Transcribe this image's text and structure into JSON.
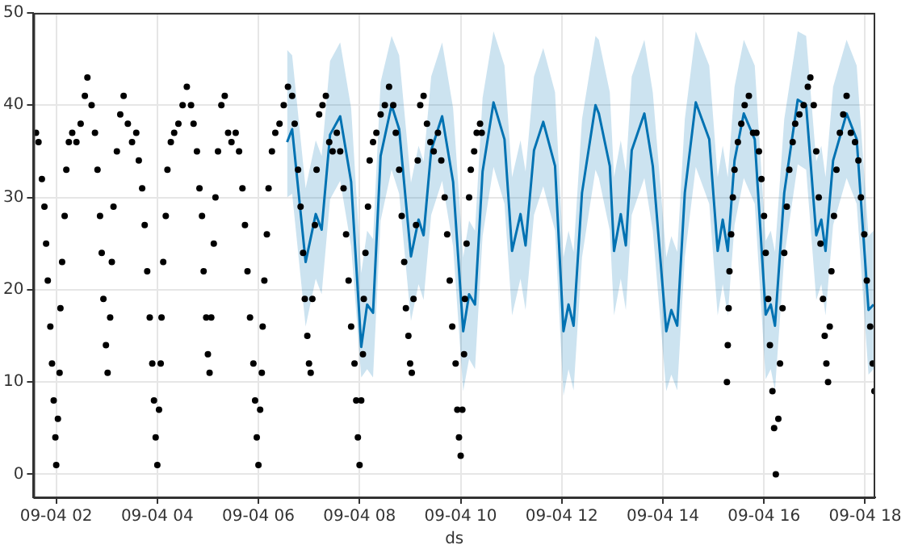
{
  "chart_data": {
    "type": "scatter",
    "xlabel": "ds",
    "grid": true,
    "legend": false,
    "xlim": [
      "--09-04T01:33",
      "--09-04T18:12"
    ],
    "xticks": [
      {
        "value": "--09-04T02:00",
        "label": "09-04 02"
      },
      {
        "value": "--09-04T04:00",
        "label": "09-04 04"
      },
      {
        "value": "--09-04T06:00",
        "label": "09-04 06"
      },
      {
        "value": "--09-04T08:00",
        "label": "09-04 08"
      },
      {
        "value": "--09-04T10:00",
        "label": "09-04 10"
      },
      {
        "value": "--09-04T12:00",
        "label": "09-04 12"
      },
      {
        "value": "--09-04T14:00",
        "label": "09-04 14"
      },
      {
        "value": "--09-04T16:00",
        "label": "09-04 16"
      },
      {
        "value": "--09-04T18:00",
        "label": "09-04 18"
      }
    ],
    "ylim": [
      -2.5,
      50
    ],
    "yticks": [
      0,
      10,
      20,
      30,
      40,
      50
    ],
    "series": [
      {
        "type": "line",
        "color": "#0072b2",
        "marker": "none",
        "line_style": "solid",
        "x": [
          "--09-04T06:34",
          "--09-04T06:40",
          "--09-04T06:56",
          "--09-04T07:08",
          "--09-04T07:15",
          "--09-04T07:25",
          "--09-04T07:37",
          "--09-04T07:50",
          "--09-04T08:02",
          "--09-04T08:09",
          "--09-04T08:16",
          "--09-04T08:25",
          "--09-04T08:38",
          "--09-04T08:47",
          "--09-04T09:01",
          "--09-04T09:10",
          "--09-04T09:16",
          "--09-04T09:25",
          "--09-04T09:38",
          "--09-04T09:51",
          "--09-04T10:03",
          "--09-04T10:10",
          "--09-04T10:17",
          "--09-04T10:26",
          "--09-04T10:39",
          "--09-04T10:52",
          "--09-04T11:01",
          "--09-04T11:11",
          "--09-04T11:17",
          "--09-04T11:27",
          "--09-04T11:38",
          "--09-04T11:52",
          "--09-04T12:02",
          "--09-04T12:08",
          "--09-04T12:14",
          "--09-04T12:24",
          "--09-04T12:40",
          "--09-04T12:44",
          "--09-04T12:57",
          "--09-04T13:02",
          "--09-04T13:10",
          "--09-04T13:16",
          "--09-04T13:23",
          "--09-04T13:38",
          "--09-04T13:48",
          "--09-04T14:04",
          "--09-04T14:10",
          "--09-04T14:17",
          "--09-04T14:26",
          "--09-04T14:39",
          "--09-04T14:55",
          "--09-04T15:05",
          "--09-04T15:11",
          "--09-04T15:17",
          "--09-04T15:25",
          "--09-04T15:36",
          "--09-04T15:49",
          "--09-04T16:02",
          "--09-04T16:08",
          "--09-04T16:13",
          "--09-04T16:24",
          "--09-04T16:40",
          "--09-04T16:50",
          "--09-04T17:02",
          "--09-04T17:08",
          "--09-04T17:13",
          "--09-04T17:22",
          "--09-04T17:38",
          "--09-04T17:50",
          "--09-04T18:04",
          "--09-04T18:10"
        ],
        "values": [
          36,
          37.4,
          23,
          28.2,
          26.5,
          36.8,
          38.8,
          31.7,
          13.8,
          18.4,
          17.5,
          34.5,
          40,
          37.4,
          23.6,
          27.6,
          25.9,
          35.1,
          38.8,
          31.7,
          15.5,
          19.5,
          18.4,
          32.8,
          40.3,
          36.3,
          24.2,
          28.2,
          24.8,
          35.1,
          38.2,
          33.4,
          15.5,
          18.4,
          16.1,
          30.5,
          40,
          39.1,
          33.4,
          24.2,
          28.2,
          24.8,
          35.1,
          39.1,
          33.4,
          15.5,
          17.8,
          16.1,
          30.5,
          40.3,
          36.3,
          24.2,
          27.6,
          24.2,
          34,
          39.1,
          36.3,
          17.3,
          18.4,
          16.1,
          30.5,
          40.6,
          40,
          25.9,
          27.6,
          24.2,
          34,
          39.1,
          36.3,
          17.8,
          18.4
        ],
        "lower": [
          30,
          30.4,
          16,
          21.2,
          19.5,
          29.8,
          31.8,
          24.7,
          10.5,
          11.4,
          10.5,
          27.5,
          33,
          30.4,
          16.6,
          20.6,
          18.9,
          28.1,
          31.8,
          24.7,
          9,
          12.5,
          11.4,
          25.8,
          33.3,
          29.3,
          17.2,
          21.2,
          17.8,
          28.1,
          31.2,
          26.4,
          8.5,
          11.4,
          9.1,
          23.5,
          33,
          32.1,
          26.4,
          17.2,
          21.2,
          17.8,
          28.1,
          32.1,
          26.4,
          9,
          10.8,
          9.1,
          23.5,
          33.3,
          29.3,
          17.2,
          20.6,
          17.2,
          27,
          32.1,
          29.3,
          10.3,
          11.4,
          9.1,
          23.5,
          33.6,
          33,
          18.9,
          20.6,
          17.2,
          27,
          32.1,
          29.3,
          10.8,
          11.4
        ],
        "upper": [
          46,
          45.4,
          31,
          36.2,
          34.5,
          44.8,
          46.8,
          39.7,
          21.8,
          26.4,
          25.5,
          42.5,
          47.5,
          45.4,
          31.6,
          35.6,
          33.9,
          43.1,
          46.8,
          39.7,
          23.5,
          27.5,
          26.4,
          40.8,
          48,
          44.3,
          32.2,
          36.2,
          32.8,
          43.1,
          46.2,
          41.4,
          23.5,
          26.4,
          24.1,
          38.5,
          47.5,
          47.1,
          41.4,
          32.2,
          36.2,
          32.8,
          43.1,
          47.1,
          41.4,
          23.5,
          25.8,
          24.1,
          38.5,
          48,
          44.3,
          32.2,
          35.6,
          32.2,
          42,
          47.1,
          44.3,
          25.3,
          26.4,
          24.1,
          38.5,
          48,
          47.5,
          33.9,
          35.6,
          32.2,
          42,
          47.1,
          44.3,
          25.8,
          26.4
        ]
      },
      {
        "color": "#000000",
        "marker": "circle",
        "x": [
          "--09-04T01:36",
          "--09-04T01:39",
          "--09-04T01:43",
          "--09-04T01:46",
          "--09-04T01:48",
          "--09-04T01:50",
          "--09-04T01:53",
          "--09-04T01:55",
          "--09-04T01:57",
          "--09-04T01:59",
          "--09-04T02:00",
          "--09-04T02:02",
          "--09-04T02:04",
          "--09-04T02:05",
          "--09-04T02:07",
          "--09-04T02:10",
          "--09-04T02:12",
          "--09-04T02:15",
          "--09-04T02:19",
          "--09-04T02:24",
          "--09-04T02:29",
          "--09-04T02:34",
          "--09-04T02:37",
          "--09-04T02:42",
          "--09-04T02:46",
          "--09-04T02:49",
          "--09-04T02:52",
          "--09-04T02:54",
          "--09-04T02:56",
          "--09-04T02:59",
          "--09-04T03:01",
          "--09-04T03:04",
          "--09-04T03:06",
          "--09-04T03:08",
          "--09-04T03:12",
          "--09-04T03:16",
          "--09-04T03:20",
          "--09-04T03:25",
          "--09-04T03:30",
          "--09-04T03:35",
          "--09-04T03:38",
          "--09-04T03:42",
          "--09-04T03:45",
          "--09-04T03:48",
          "--09-04T03:51",
          "--09-04T03:54",
          "--09-04T03:56",
          "--09-04T03:58",
          "--09-04T04:00",
          "--09-04T04:02",
          "--09-04T04:04",
          "--09-04T04:05",
          "--09-04T04:07",
          "--09-04T04:10",
          "--09-04T04:12",
          "--09-04T04:16",
          "--09-04T04:20",
          "--09-04T04:25",
          "--09-04T04:30",
          "--09-04T04:35",
          "--09-04T04:40",
          "--09-04T04:43",
          "--09-04T04:47",
          "--09-04T04:50",
          "--09-04T04:53",
          "--09-04T04:55",
          "--09-04T04:58",
          "--09-04T05:00",
          "--09-04T05:02",
          "--09-04T05:04",
          "--09-04T05:07",
          "--09-04T05:09",
          "--09-04T05:12",
          "--09-04T05:16",
          "--09-04T05:20",
          "--09-04T05:24",
          "--09-04T05:28",
          "--09-04T05:33",
          "--09-04T05:37",
          "--09-04T05:41",
          "--09-04T05:44",
          "--09-04T05:47",
          "--09-04T05:50",
          "--09-04T05:54",
          "--09-04T05:56",
          "--09-04T05:58",
          "--09-04T06:00",
          "--09-04T06:02",
          "--09-04T06:04",
          "--09-04T06:05",
          "--09-04T06:07",
          "--09-04T06:10",
          "--09-04T06:12",
          "--09-04T06:16",
          "--09-04T06:20",
          "--09-04T06:25",
          "--09-04T06:30",
          "--09-04T06:35",
          "--09-04T06:40",
          "--09-04T06:43",
          "--09-04T06:47",
          "--09-04T06:50",
          "--09-04T06:53",
          "--09-04T06:55",
          "--09-04T06:58",
          "--09-04T07:00",
          "--09-04T07:02",
          "--09-04T07:04",
          "--09-04T07:07",
          "--09-04T07:09",
          "--09-04T07:12",
          "--09-04T07:16",
          "--09-04T07:20",
          "--09-04T07:24",
          "--09-04T07:28",
          "--09-04T07:33",
          "--09-04T07:37",
          "--09-04T07:41",
          "--09-04T07:44",
          "--09-04T07:47",
          "--09-04T07:50",
          "--09-04T07:54",
          "--09-04T07:56",
          "--09-04T07:58",
          "--09-04T08:00",
          "--09-04T08:02",
          "--09-04T08:04",
          "--09-04T08:05",
          "--09-04T08:07",
          "--09-04T08:10",
          "--09-04T08:12",
          "--09-04T08:16",
          "--09-04T08:20",
          "--09-04T08:25",
          "--09-04T08:30",
          "--09-04T08:35",
          "--09-04T08:40",
          "--09-04T08:43",
          "--09-04T08:47",
          "--09-04T08:50",
          "--09-04T08:53",
          "--09-04T08:55",
          "--09-04T08:58",
          "--09-04T09:00",
          "--09-04T09:02",
          "--09-04T09:04",
          "--09-04T09:07",
          "--09-04T09:09",
          "--09-04T09:12",
          "--09-04T09:16",
          "--09-04T09:20",
          "--09-04T09:24",
          "--09-04T09:28",
          "--09-04T09:33",
          "--09-04T09:37",
          "--09-04T09:41",
          "--09-04T09:44",
          "--09-04T09:47",
          "--09-04T09:50",
          "--09-04T09:54",
          "--09-04T09:56",
          "--09-04T09:58",
          "--09-04T10:00",
          "--09-04T10:02",
          "--09-04T10:04",
          "--09-04T10:05",
          "--09-04T10:07",
          "--09-04T10:10",
          "--09-04T10:12",
          "--09-04T10:16",
          "--09-04T10:19",
          "--09-04T10:23",
          "--09-04T10:25",
          "--09-04T15:16",
          "--09-04T15:17",
          "--09-04T15:18",
          "--09-04T15:19",
          "--09-04T15:21",
          "--09-04T15:23",
          "--09-04T15:25",
          "--09-04T15:29",
          "--09-04T15:33",
          "--09-04T15:37",
          "--09-04T15:42",
          "--09-04T15:47",
          "--09-04T15:51",
          "--09-04T15:54",
          "--09-04T15:57",
          "--09-04T16:00",
          "--09-04T16:02",
          "--09-04T16:05",
          "--09-04T16:07",
          "--09-04T16:10",
          "--09-04T16:12",
          "--09-04T16:14",
          "--09-04T16:17",
          "--09-04T16:19",
          "--09-04T16:22",
          "--09-04T16:24",
          "--09-04T16:27",
          "--09-04T16:30",
          "--09-04T16:34",
          "--09-04T16:37",
          "--09-04T16:42",
          "--09-04T16:47",
          "--09-04T16:52",
          "--09-04T16:55",
          "--09-04T16:59",
          "--09-04T17:02",
          "--09-04T17:05",
          "--09-04T17:07",
          "--09-04T17:10",
          "--09-04T17:12",
          "--09-04T17:14",
          "--09-04T17:16",
          "--09-04T17:18",
          "--09-04T17:20",
          "--09-04T17:23",
          "--09-04T17:26",
          "--09-04T17:30",
          "--09-04T17:34",
          "--09-04T17:38",
          "--09-04T17:43",
          "--09-04T17:48",
          "--09-04T17:52",
          "--09-04T17:55",
          "--09-04T17:59",
          "--09-04T18:02",
          "--09-04T18:06",
          "--09-04T18:09",
          "--09-04T18:11"
        ],
        "values": [
          37,
          36,
          32,
          29,
          25,
          21,
          16,
          12,
          8,
          4,
          1,
          6,
          11,
          18,
          23,
          28,
          33,
          36,
          37,
          36,
          38,
          41,
          43,
          40,
          37,
          33,
          28,
          24,
          19,
          14,
          11,
          17,
          23,
          29,
          35,
          39,
          41,
          38,
          36,
          37,
          34,
          31,
          27,
          22,
          17,
          12,
          8,
          4,
          1,
          7,
          12,
          17,
          23,
          28,
          33,
          36,
          37,
          38,
          40,
          42,
          40,
          38,
          35,
          31,
          28,
          22,
          17,
          13,
          11,
          17,
          25,
          30,
          35,
          40,
          41,
          37,
          36,
          37,
          35,
          31,
          27,
          22,
          17,
          12,
          8,
          4,
          1,
          7,
          11,
          16,
          21,
          26,
          31,
          35,
          37,
          38,
          40,
          42,
          41,
          38,
          33,
          29,
          24,
          19,
          15,
          12,
          11,
          19,
          27,
          33,
          39,
          40,
          41,
          36,
          35,
          37,
          35,
          31,
          26,
          21,
          16,
          12,
          8,
          4,
          1,
          8,
          13,
          19,
          24,
          29,
          34,
          36,
          37,
          39,
          40,
          42,
          40,
          37,
          33,
          28,
          23,
          18,
          15,
          12,
          11,
          19,
          27,
          34,
          40,
          41,
          38,
          36,
          35,
          37,
          34,
          30,
          26,
          21,
          16,
          12,
          7,
          4,
          2,
          7,
          13,
          19,
          25,
          30,
          33,
          35,
          37,
          38,
          37,
          10,
          14,
          18,
          22,
          26,
          30,
          33,
          36,
          38,
          40,
          41,
          37,
          37,
          35,
          32,
          28,
          24,
          19,
          14,
          9,
          5,
          0,
          6,
          12,
          18,
          24,
          29,
          33,
          36,
          38,
          39,
          40,
          42,
          43,
          40,
          35,
          30,
          25,
          19,
          15,
          12,
          10,
          16,
          22,
          28,
          33,
          37,
          39,
          41,
          37,
          36,
          34,
          30,
          26,
          21,
          16,
          12,
          9
        ]
      }
    ]
  }
}
